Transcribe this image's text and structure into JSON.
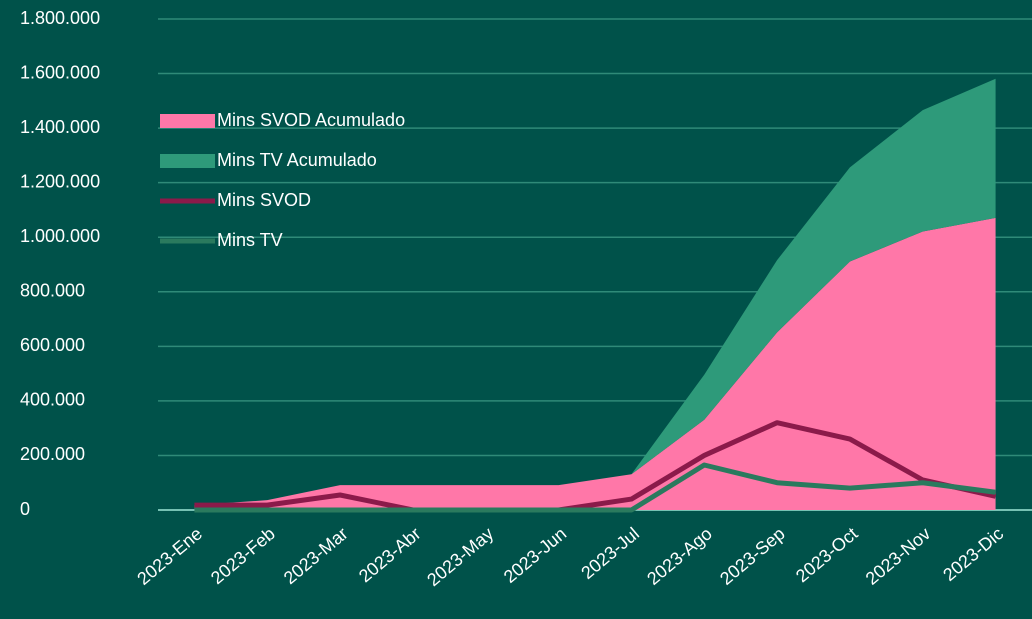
{
  "chart_data": {
    "type": "area",
    "categories": [
      "2023-Ene",
      "2023-Feb",
      "2023-Mar",
      "2023-Abr",
      "2023-May",
      "2023-Jun",
      "2023-Jul",
      "2023-Ago",
      "2023-Sep",
      "2023-Oct",
      "2023-Nov",
      "2023-Dic"
    ],
    "series": [
      {
        "name": "Mins SVOD Acumulado",
        "type": "area",
        "color": "#ff77a8",
        "values": [
          18000,
          36000,
          91000,
          91000,
          91000,
          91000,
          131000,
          331000,
          651000,
          911000,
          1021000,
          1071000
        ]
      },
      {
        "name": "Mins TV Acumulado",
        "type": "area",
        "color": "#2e9a7a",
        "values": [
          0,
          0,
          0,
          0,
          0,
          0,
          0,
          165000,
          265000,
          345000,
          445000,
          510000
        ]
      },
      {
        "name": "Mins SVOD",
        "type": "line",
        "color": "#8b1a4a",
        "values": [
          18000,
          18000,
          55000,
          0,
          0,
          0,
          40000,
          200000,
          320000,
          260000,
          110000,
          50000
        ]
      },
      {
        "name": "Mins TV",
        "type": "line",
        "color": "#2a7a5e",
        "values": [
          0,
          0,
          0,
          0,
          0,
          0,
          0,
          165000,
          100000,
          80000,
          100000,
          65000
        ]
      }
    ],
    "ylim": [
      0,
      1800000
    ],
    "yticks": [
      0,
      {
        "value": 200000,
        "label": "200.000"
      },
      {
        "value": 400000,
        "label": "400.000"
      },
      {
        "value": 600000,
        "label": "600.000"
      },
      {
        "value": 800000,
        "label": "800.000"
      },
      {
        "value": 1000000,
        "label": "1.000.000"
      },
      {
        "value": 1200000,
        "label": "1.200.000"
      },
      {
        "value": 1400000,
        "label": "1.400.000"
      },
      {
        "value": 1600000,
        "label": "1.600.000"
      },
      {
        "value": 1800000,
        "label": "1.800.000"
      }
    ],
    "grid": true,
    "stacked_areas": true,
    "legend": "left"
  }
}
